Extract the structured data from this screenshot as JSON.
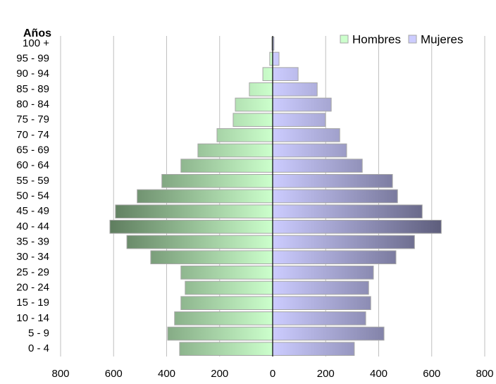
{
  "chart_data": {
    "type": "pyramid",
    "ylabel": "Años",
    "categories": [
      "0 - 4",
      "5 - 9",
      "10 - 14",
      "15 - 19",
      "20 - 24",
      "25 - 29",
      "30 - 34",
      "35 - 39",
      "40 - 44",
      "45 - 49",
      "50 - 54",
      "55 - 59",
      "60 - 64",
      "65 - 69",
      "70 - 74",
      "75 - 79",
      "80 - 84",
      "85 - 89",
      "90 - 94",
      "95 - 99",
      "100 +"
    ],
    "series": [
      {
        "name": "Hombres",
        "color": "#ccffcc",
        "values": [
          351,
          396,
          370,
          346,
          330,
          346,
          460,
          550,
          614,
          593,
          511,
          418,
          346,
          282,
          210,
          149,
          141,
          88,
          37,
          11,
          3
        ]
      },
      {
        "name": "Mujeres",
        "color": "#ccccff",
        "values": [
          308,
          420,
          351,
          370,
          362,
          380,
          465,
          535,
          636,
          564,
          471,
          452,
          338,
          279,
          253,
          199,
          221,
          168,
          96,
          24,
          5
        ]
      }
    ],
    "xlim": [
      -800,
      800
    ],
    "xticks": [
      {
        "value": -800,
        "label": "800"
      },
      {
        "value": -600,
        "label": "600"
      },
      {
        "value": -400,
        "label": "400"
      },
      {
        "value": -200,
        "label": "200"
      },
      0,
      200,
      400,
      600,
      800
    ],
    "grid": true,
    "legend": "top-right"
  }
}
